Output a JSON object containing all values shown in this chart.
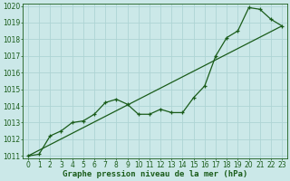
{
  "title": "Graphe pression niveau de la mer (hPa)",
  "background_color": "#cbe8e8",
  "grid_color": "#aed4d4",
  "line_color": "#1a5c1a",
  "x_min": 0,
  "x_max": 23,
  "y_min": 1011,
  "y_max": 1020,
  "x_ticks": [
    0,
    1,
    2,
    3,
    4,
    5,
    6,
    7,
    8,
    9,
    10,
    11,
    12,
    13,
    14,
    15,
    16,
    17,
    18,
    19,
    20,
    21,
    22,
    23
  ],
  "y_ticks": [
    1011,
    1012,
    1013,
    1014,
    1015,
    1016,
    1017,
    1018,
    1019,
    1020
  ],
  "straight_line_x": [
    0,
    23
  ],
  "straight_line_y": [
    1011.0,
    1018.8
  ],
  "series_x": [
    0,
    1,
    2,
    3,
    4,
    5,
    6,
    7,
    8,
    9,
    10,
    11,
    12,
    13,
    14,
    15,
    16,
    17,
    18,
    19,
    20,
    21,
    22,
    23
  ],
  "series_y": [
    1011.0,
    1011.1,
    1012.2,
    1012.5,
    1013.0,
    1013.1,
    1013.5,
    1014.2,
    1014.4,
    1014.1,
    1013.5,
    1013.5,
    1013.8,
    1013.6,
    1013.6,
    1014.5,
    1015.2,
    1017.0,
    1018.1,
    1018.5,
    1019.9,
    1019.8,
    1019.2,
    1018.8
  ],
  "tick_fontsize": 5.5,
  "label_fontsize": 6.5
}
